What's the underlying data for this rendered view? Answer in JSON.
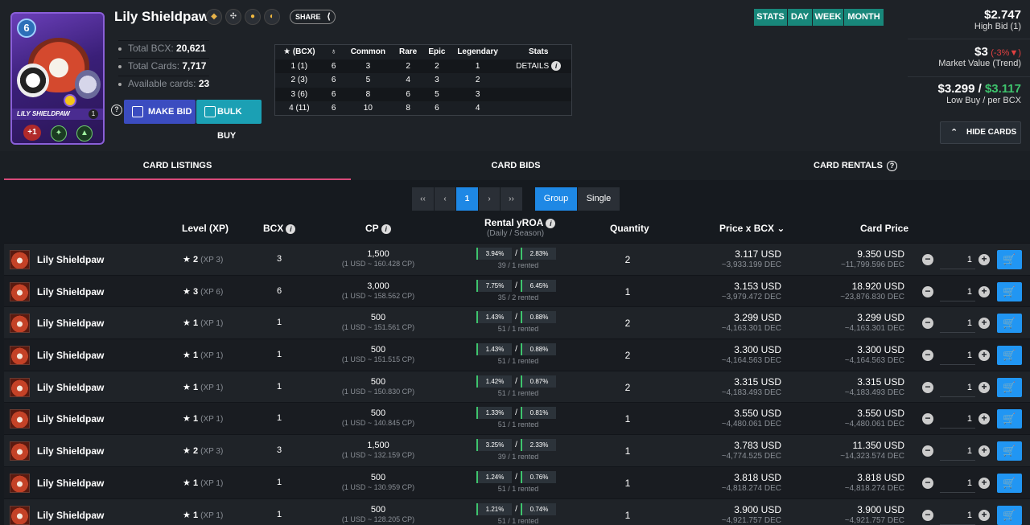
{
  "card": {
    "name": "Lily Shieldpaw",
    "mana": "6",
    "art_name": "LILY SHIELDPAW",
    "art_level": "1",
    "art_stat": "+1"
  },
  "header": {
    "share_label": "SHARE",
    "total_bcx_label": "Total BCX:",
    "total_bcx": "20,621",
    "total_cards_label": "Total Cards:",
    "total_cards": "7,717",
    "available_label": "Available cards:",
    "available": "23",
    "make_bid_label": "MAKE BID",
    "bulk_buy_label": "BULK BUY",
    "help_glyph": "?"
  },
  "level_table": {
    "headers": [
      "(BCX)",
      "",
      "Common",
      "Rare",
      "Epic",
      "Legendary",
      "Stats"
    ],
    "rows": [
      [
        "1 (1)",
        "6",
        "3",
        "2",
        "2",
        "1",
        "DETAILS"
      ],
      [
        "2 (3)",
        "6",
        "5",
        "4",
        "3",
        "2",
        ""
      ],
      [
        "3 (6)",
        "6",
        "8",
        "6",
        "5",
        "3",
        ""
      ],
      [
        "4 (11)",
        "6",
        "10",
        "8",
        "6",
        "4",
        ""
      ]
    ]
  },
  "periods": [
    "STATS",
    "DAY",
    "WEEK",
    "MONTH"
  ],
  "price_panel": {
    "high_bid": "$2.747",
    "high_bid_label": "High Bid (1)",
    "market_value": "$3",
    "trend": "(-3%",
    "market_label": "Market Value (Trend)",
    "low_buy": "$3.299",
    "sep": "/",
    "per_bcx": "$3.117",
    "low_label": "Low Buy / per BCX",
    "hide_cards_label": "HIDE CARDS"
  },
  "tabs": [
    {
      "label": "CARD LISTINGS",
      "active": true
    },
    {
      "label": "CARD BIDS",
      "active": false
    },
    {
      "label": "CARD RENTALS",
      "active": false
    }
  ],
  "pagination": {
    "first": "‹‹",
    "prev": "‹",
    "current": "1",
    "next": "›",
    "last": "››",
    "group_label": "Group",
    "single_label": "Single"
  },
  "columns": {
    "level": "Level (XP)",
    "bcx": "BCX",
    "cp": "CP",
    "rental": "Rental yROA",
    "rental_sub": "(Daily / Season)",
    "quantity": "Quantity",
    "price_bcx": "Price x BCX",
    "card_price": "Card Price"
  },
  "listings": [
    {
      "name": "Lily Shieldpaw",
      "level": "2",
      "xp": "(XP 3)",
      "bcx": "3",
      "cp": "1,500",
      "cp_rate": "(1 USD ~ 160.428 CP)",
      "roa_daily": "3.94%",
      "roa_season": "2.83%",
      "rented": "39 / 1 rented",
      "quantity": "2",
      "price_bcx": "3.117 USD",
      "price_bcx_dec": "~3,933.199 DEC",
      "card_price": "9.350 USD",
      "card_price_dec": "~11,799.596 DEC",
      "qty_input": "1"
    },
    {
      "name": "Lily Shieldpaw",
      "level": "3",
      "xp": "(XP 6)",
      "bcx": "6",
      "cp": "3,000",
      "cp_rate": "(1 USD ~ 158.562 CP)",
      "roa_daily": "7.75%",
      "roa_season": "6.45%",
      "rented": "35 / 2 rented",
      "quantity": "1",
      "price_bcx": "3.153 USD",
      "price_bcx_dec": "~3,979.472 DEC",
      "card_price": "18.920 USD",
      "card_price_dec": "~23,876.830 DEC",
      "qty_input": "1"
    },
    {
      "name": "Lily Shieldpaw",
      "level": "1",
      "xp": "(XP 1)",
      "bcx": "1",
      "cp": "500",
      "cp_rate": "(1 USD ~ 151.561 CP)",
      "roa_daily": "1.43%",
      "roa_season": "0.88%",
      "rented": "51 / 1 rented",
      "quantity": "2",
      "price_bcx": "3.299 USD",
      "price_bcx_dec": "~4,163.301 DEC",
      "card_price": "3.299 USD",
      "card_price_dec": "~4,163.301 DEC",
      "qty_input": "1"
    },
    {
      "name": "Lily Shieldpaw",
      "level": "1",
      "xp": "(XP 1)",
      "bcx": "1",
      "cp": "500",
      "cp_rate": "(1 USD ~ 151.515 CP)",
      "roa_daily": "1.43%",
      "roa_season": "0.88%",
      "rented": "51 / 1 rented",
      "quantity": "2",
      "price_bcx": "3.300 USD",
      "price_bcx_dec": "~4,164.563 DEC",
      "card_price": "3.300 USD",
      "card_price_dec": "~4,164.563 DEC",
      "qty_input": "1"
    },
    {
      "name": "Lily Shieldpaw",
      "level": "1",
      "xp": "(XP 1)",
      "bcx": "1",
      "cp": "500",
      "cp_rate": "(1 USD ~ 150.830 CP)",
      "roa_daily": "1.42%",
      "roa_season": "0.87%",
      "rented": "51 / 1 rented",
      "quantity": "2",
      "price_bcx": "3.315 USD",
      "price_bcx_dec": "~4,183.493 DEC",
      "card_price": "3.315 USD",
      "card_price_dec": "~4,183.493 DEC",
      "qty_input": "1"
    },
    {
      "name": "Lily Shieldpaw",
      "level": "1",
      "xp": "(XP 1)",
      "bcx": "1",
      "cp": "500",
      "cp_rate": "(1 USD ~ 140.845 CP)",
      "roa_daily": "1.33%",
      "roa_season": "0.81%",
      "rented": "51 / 1 rented",
      "quantity": "1",
      "price_bcx": "3.550 USD",
      "price_bcx_dec": "~4,480.061 DEC",
      "card_price": "3.550 USD",
      "card_price_dec": "~4,480.061 DEC",
      "qty_input": "1"
    },
    {
      "name": "Lily Shieldpaw",
      "level": "2",
      "xp": "(XP 3)",
      "bcx": "3",
      "cp": "1,500",
      "cp_rate": "(1 USD ~ 132.159 CP)",
      "roa_daily": "3.25%",
      "roa_season": "2.33%",
      "rented": "39 / 1 rented",
      "quantity": "1",
      "price_bcx": "3.783 USD",
      "price_bcx_dec": "~4,774.525 DEC",
      "card_price": "11.350 USD",
      "card_price_dec": "~14,323.574 DEC",
      "qty_input": "1"
    },
    {
      "name": "Lily Shieldpaw",
      "level": "1",
      "xp": "(XP 1)",
      "bcx": "1",
      "cp": "500",
      "cp_rate": "(1 USD ~ 130.959 CP)",
      "roa_daily": "1.24%",
      "roa_season": "0.76%",
      "rented": "51 / 1 rented",
      "quantity": "1",
      "price_bcx": "3.818 USD",
      "price_bcx_dec": "~4,818.274 DEC",
      "card_price": "3.818 USD",
      "card_price_dec": "~4,818.274 DEC",
      "qty_input": "1"
    },
    {
      "name": "Lily Shieldpaw",
      "level": "1",
      "xp": "(XP 1)",
      "bcx": "1",
      "cp": "500",
      "cp_rate": "(1 USD ~ 128.205 CP)",
      "roa_daily": "1.21%",
      "roa_season": "0.74%",
      "rented": "51 / 1 rented",
      "quantity": "1",
      "price_bcx": "3.900 USD",
      "price_bcx_dec": "~4,921.757 DEC",
      "card_price": "3.900 USD",
      "card_price_dec": "~4,921.757 DEC",
      "qty_input": "1"
    }
  ],
  "colors": {
    "accent_blue": "#1e88e5",
    "teal": "#18877a",
    "make_bid": "#3b4cc0",
    "bulk_buy": "#1ba0b4",
    "tab_underline": "#d84a7a",
    "trend_red": "#e04040",
    "price_green": "#3ec46d"
  },
  "icons": {
    "splinter": "life-splinter-icon",
    "share": "share-icon",
    "cart": "cart-icon",
    "star": "star-icon",
    "info": "info-icon"
  }
}
